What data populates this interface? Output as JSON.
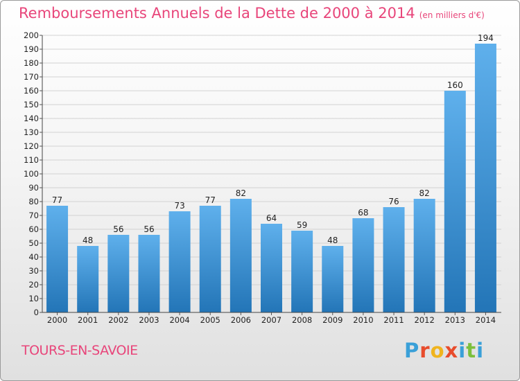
{
  "chart_data": {
    "type": "bar",
    "title": "Remboursements Annuels de la Dette de 2000 à 2014",
    "units": "(en milliers d'€)",
    "categories": [
      "2000",
      "2001",
      "2002",
      "2003",
      "2004",
      "2005",
      "2006",
      "2007",
      "2008",
      "2009",
      "2010",
      "2011",
      "2012",
      "2013",
      "2014"
    ],
    "values": [
      77,
      48,
      56,
      56,
      73,
      77,
      82,
      64,
      59,
      48,
      68,
      76,
      82,
      160,
      194
    ],
    "ylim": [
      0,
      200
    ],
    "yticks": [
      "0",
      "10",
      "20",
      "30",
      "40",
      "50",
      "60",
      "70",
      "80",
      "90",
      "100",
      "110",
      "120",
      "130",
      "140",
      "150",
      "160",
      "170",
      "180",
      "190",
      "200"
    ],
    "grid": true,
    "xlabel": "",
    "ylabel": "",
    "bar_color": "#3a8fd6"
  },
  "footer": {
    "town": "TOURS-EN-SAVOIE",
    "logo": "Proxiti",
    "logo_colors": [
      "#3aa0d8",
      "#e84c2c",
      "#f0b41e",
      "#e84c2c",
      "#3aa0d8",
      "#7cbf3c",
      "#3aa0d8"
    ]
  }
}
